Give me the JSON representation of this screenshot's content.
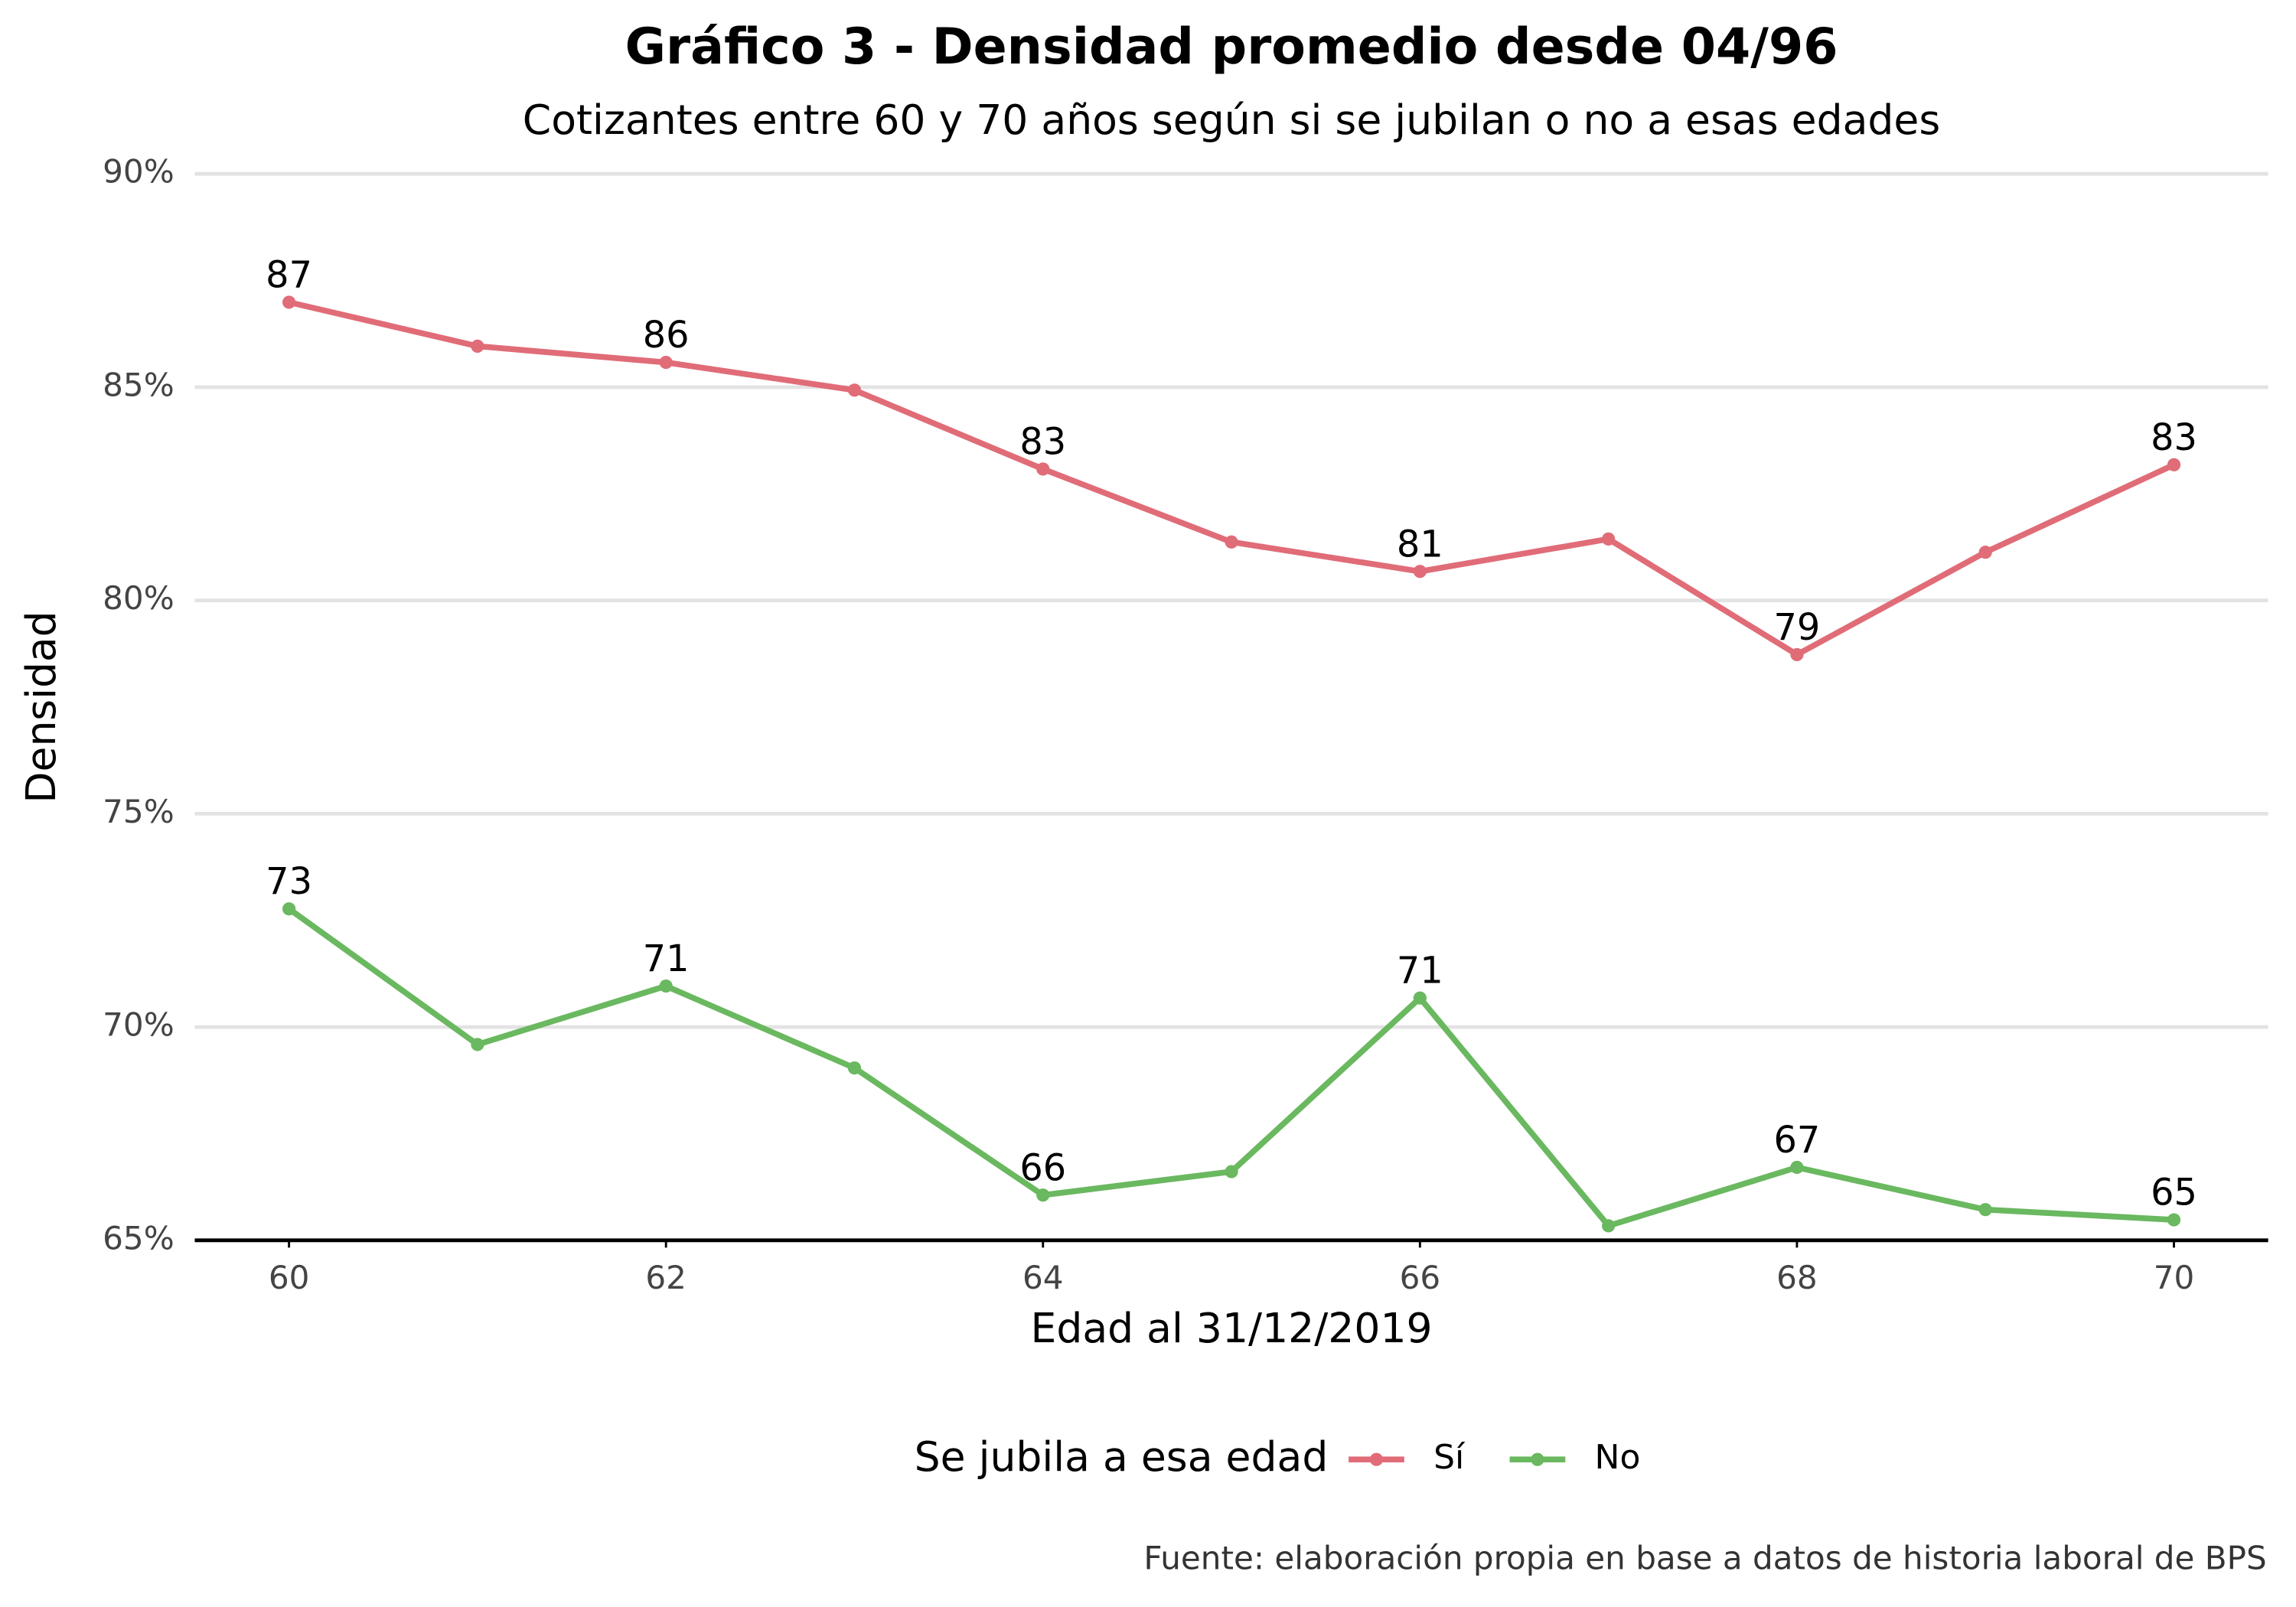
{
  "chart_data": {
    "type": "line",
    "title": "Gráfico 3 - Densidad promedio desde 04/96",
    "subtitle": "Cotizantes entre 60 y 70 años según si se jubilan o no a esas edades",
    "x_label": "Edad al 31/12/2019",
    "y_label": "Densidad",
    "caption": "Fuente: elaboración propia en base a datos de historia laboral de BPS",
    "legend_title": "Se jubila a esa edad",
    "legend_position": "bottom",
    "grid": true,
    "x": [
      60,
      61,
      62,
      63,
      64,
      65,
      66,
      67,
      68,
      69,
      70
    ],
    "xlim": [
      59.5,
      70.5
    ],
    "xticks": [
      60,
      62,
      64,
      66,
      68,
      70
    ],
    "ylim": [
      65,
      90
    ],
    "yticks": [
      {
        "value": 65,
        "label": "65%"
      },
      {
        "value": 70,
        "label": "70%"
      },
      {
        "value": 75,
        "label": "75%"
      },
      {
        "value": 80,
        "label": "80%"
      },
      {
        "value": 85,
        "label": "85%"
      },
      {
        "value": 90,
        "label": "90%"
      }
    ],
    "series": [
      {
        "name": "Sí",
        "color": "#e06c77",
        "values": [
          86.99,
          85.96,
          85.58,
          84.93,
          83.08,
          81.37,
          80.68,
          81.44,
          78.73,
          81.13,
          83.18
        ],
        "value_labels": [
          "87",
          null,
          "86",
          null,
          "83",
          null,
          "81",
          null,
          "79",
          null,
          "83"
        ]
      },
      {
        "name": "No",
        "color": "#6ab85f",
        "values": [
          72.77,
          69.59,
          70.96,
          69.04,
          66.06,
          66.61,
          70.68,
          65.34,
          66.71,
          65.72,
          65.48
        ],
        "value_labels": [
          "73",
          null,
          "71",
          null,
          "66",
          null,
          "71",
          null,
          "67",
          null,
          "65"
        ]
      }
    ]
  }
}
